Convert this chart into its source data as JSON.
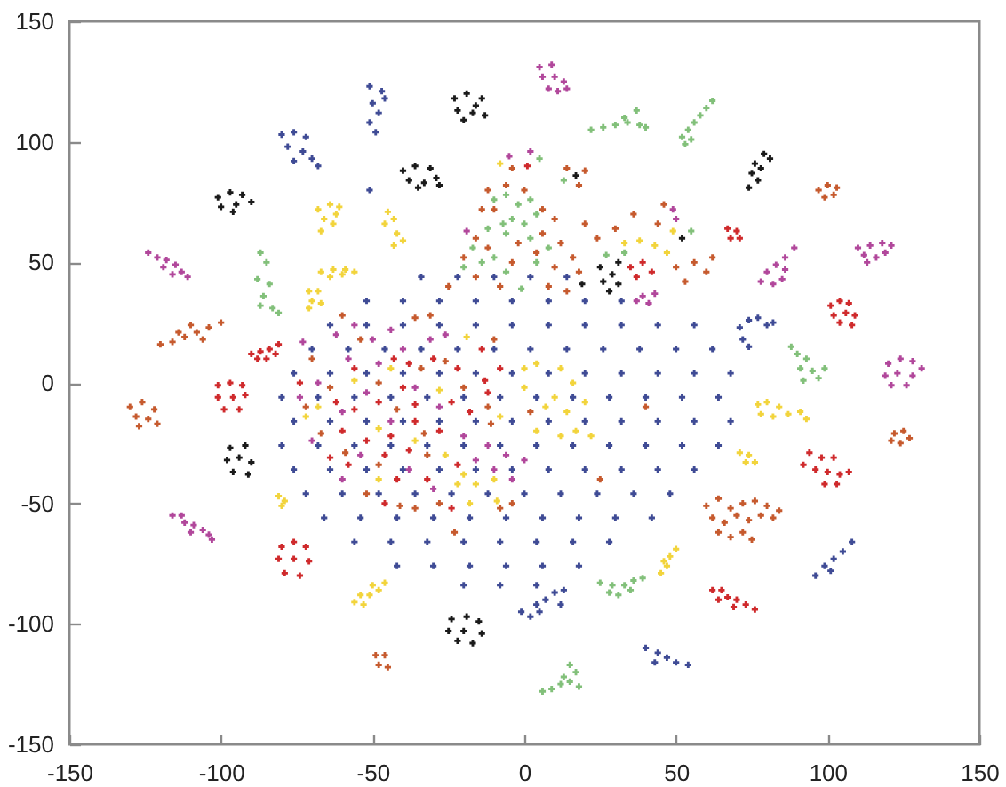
{
  "chart_data": {
    "type": "scatter",
    "marker": "cross",
    "xlim": [
      -150,
      150
    ],
    "ylim": [
      -150,
      150
    ],
    "xticks": [
      -150,
      -100,
      -50,
      0,
      50,
      100,
      150
    ],
    "yticks": [
      -150,
      -100,
      -50,
      0,
      50,
      100,
      150
    ],
    "series": [
      {
        "color": "#3f4b95",
        "x": [
          -51,
          -47,
          -50,
          -48,
          -51,
          -49,
          -46,
          -80,
          -76,
          -72,
          -78,
          -73,
          -70,
          -76,
          -68,
          -1,
          2,
          4,
          7,
          10,
          13,
          12,
          5,
          40,
          44,
          47,
          50,
          54,
          43,
          96,
          99,
          102,
          105,
          108,
          101,
          71,
          74,
          77,
          80,
          72,
          74,
          82,
          -51,
          -34,
          -22,
          -10,
          2,
          14,
          -52,
          -40,
          -28,
          -16,
          -4,
          8,
          20,
          32,
          -64,
          -52,
          -40,
          -28,
          -16,
          -4,
          8,
          20,
          32,
          44,
          56,
          -70,
          -58,
          -46,
          -34,
          -22,
          -10,
          2,
          14,
          26,
          38,
          50,
          62,
          -76,
          -64,
          -52,
          -40,
          -28,
          -16,
          -4,
          8,
          20,
          32,
          44,
          56,
          68,
          -80,
          -68,
          -56,
          -44,
          -32,
          -20,
          -8,
          4,
          16,
          28,
          40,
          52,
          64,
          -76,
          -64,
          -52,
          -40,
          -28,
          -16,
          -4,
          8,
          20,
          32,
          44,
          56,
          68,
          -80,
          -68,
          -56,
          -44,
          -32,
          -20,
          -8,
          4,
          16,
          28,
          40,
          52,
          64,
          -76,
          -64,
          -52,
          -40,
          -28,
          -16,
          -4,
          8,
          20,
          32,
          44,
          56,
          -72,
          -60,
          -48,
          -36,
          -24,
          -12,
          0,
          12,
          24,
          36,
          48,
          -66,
          -54,
          -42,
          -30,
          -18,
          -6,
          6,
          18,
          30,
          42,
          -56,
          -44,
          -32,
          -20,
          -8,
          4,
          16,
          28,
          -42,
          -30,
          -18,
          -6,
          6,
          18,
          -20,
          -8,
          4
        ],
        "values": [
          123,
          121,
          116,
          112,
          108,
          104,
          118,
          103,
          104,
          102,
          98,
          96,
          93,
          92,
          90,
          -95,
          -97,
          -92,
          -90,
          -87,
          -86,
          -92,
          -95,
          -110,
          -112,
          -114,
          -116,
          -117,
          -116,
          -80,
          -76,
          -73,
          -70,
          -66,
          -78,
          23,
          26,
          27,
          24,
          18,
          15,
          25,
          80,
          44,
          44,
          44,
          44,
          44,
          34,
          34,
          34,
          34,
          34,
          34,
          34,
          34,
          24,
          24,
          24,
          24,
          24,
          24,
          24,
          24,
          24,
          24,
          24,
          14,
          14,
          14,
          14,
          14,
          14,
          14,
          14,
          14,
          14,
          14,
          14,
          4,
          4,
          4,
          4,
          4,
          4,
          4,
          4,
          4,
          4,
          4,
          4,
          4,
          -6,
          -6,
          -6,
          -6,
          -6,
          -6,
          -6,
          -6,
          -6,
          -6,
          -6,
          -6,
          -6,
          -16,
          -16,
          -16,
          -16,
          -16,
          -16,
          -16,
          -16,
          -16,
          -16,
          -16,
          -16,
          -16,
          -26,
          -26,
          -26,
          -26,
          -26,
          -26,
          -26,
          -26,
          -26,
          -26,
          -26,
          -26,
          -26,
          -36,
          -36,
          -36,
          -36,
          -36,
          -36,
          -36,
          -36,
          -36,
          -36,
          -36,
          -36,
          -46,
          -46,
          -46,
          -46,
          -46,
          -46,
          -46,
          -46,
          -46,
          -46,
          -46,
          -56,
          -56,
          -56,
          -56,
          -56,
          -56,
          -56,
          -56,
          -56,
          -56,
          -66,
          -66,
          -66,
          -66,
          -66,
          -66,
          -66,
          -66,
          -76,
          -76,
          -76,
          -76,
          -76,
          -76,
          -84,
          -84,
          -84
        ]
      },
      {
        "color": "#1a1a1a",
        "x": [
          -23,
          -19,
          -14,
          -22,
          -17,
          -13,
          -20,
          -16,
          -40,
          -36,
          -31,
          -38,
          -33,
          -29,
          -35,
          -28,
          -101,
          -97,
          -93,
          -100,
          -95,
          -90,
          -96,
          -97,
          -92,
          -98,
          -94,
          -90,
          -96,
          -91,
          -24,
          -19,
          -15,
          -25,
          -20,
          -14,
          -22,
          -17,
          79,
          81,
          76,
          78,
          75,
          77,
          74,
          25,
          29,
          31,
          26,
          31,
          28,
          17,
          52,
          19
        ],
        "values": [
          118,
          120,
          118,
          113,
          112,
          111,
          109,
          115,
          88,
          90,
          89,
          84,
          83,
          85,
          81,
          82,
          77,
          79,
          78,
          73,
          74,
          75,
          71,
          -27,
          -26,
          -32,
          -31,
          -33,
          -37,
          -38,
          -98,
          -97,
          -99,
          -103,
          -103,
          -104,
          -107,
          -108,
          95,
          93,
          91,
          89,
          87,
          84,
          81,
          48,
          45,
          50,
          42,
          41,
          38,
          86,
          60,
          41
        ]
      },
      {
        "color": "#b1479b",
        "x": [
          5,
          9,
          6,
          10,
          13,
          8,
          14,
          11,
          -124,
          -121,
          -118,
          -119,
          -115,
          -113,
          -111,
          -116,
          -116,
          -113,
          -112,
          -109,
          -106,
          -104,
          -110,
          -103,
          120,
          124,
          128,
          119,
          123,
          128,
          121,
          126,
          131,
          89,
          86,
          83,
          80,
          86,
          78,
          82,
          85,
          110,
          114,
          118,
          121,
          112,
          116,
          119,
          113,
          -73,
          -62,
          -56,
          -50,
          -44,
          -40,
          -58,
          -48,
          -31,
          -26,
          -68,
          -52,
          -36,
          -28,
          -74,
          -60,
          -44,
          -20,
          -12,
          -6,
          0,
          -10,
          -16,
          -4,
          -70,
          -54,
          -38,
          -30,
          -60,
          39,
          41,
          37,
          43,
          -5,
          2,
          -19,
          49,
          50
        ],
        "values": [
          131,
          132,
          127,
          127,
          125,
          122,
          122,
          121,
          54,
          52,
          51,
          48,
          49,
          46,
          44,
          45,
          -55,
          -55,
          -58,
          -59,
          -61,
          -63,
          -62,
          -65,
          8,
          10,
          9,
          3,
          4,
          3,
          -1,
          -1,
          6,
          56,
          52,
          49,
          46,
          47,
          42,
          41,
          43,
          56,
          57,
          58,
          57,
          53,
          52,
          54,
          50,
          17,
          20,
          24,
          18,
          22,
          14,
          10,
          8,
          18,
          20,
          0,
          -4,
          -2,
          -10,
          -6,
          -12,
          -16,
          -22,
          -26,
          -30,
          -32,
          -36,
          -32,
          -40,
          -24,
          -30,
          -36,
          -44,
          -40,
          36,
          33,
          34,
          37,
          94,
          96,
          63,
          72,
          68
        ]
      },
      {
        "color": "#82c07a",
        "x": [
          22,
          26,
          30,
          34,
          38,
          33,
          37,
          40,
          52,
          54,
          56,
          55,
          58,
          60,
          62,
          53,
          -87,
          -85,
          -88,
          -84,
          -86,
          -87,
          -83,
          -81,
          25,
          29,
          33,
          36,
          39,
          31,
          28,
          35,
          6,
          9,
          12,
          15,
          17,
          15,
          18,
          13,
          88,
          90,
          93,
          91,
          95,
          97,
          99,
          92,
          -10,
          -6,
          -2,
          2,
          -7,
          -4,
          0,
          4,
          -12,
          -6,
          2,
          -17,
          -14,
          -20,
          -10,
          -6,
          4,
          8,
          -1,
          27,
          33,
          5,
          13,
          55
        ],
        "values": [
          105,
          106,
          107,
          108,
          107,
          110,
          113,
          106,
          102,
          105,
          108,
          101,
          111,
          114,
          117,
          99,
          54,
          50,
          43,
          41,
          36,
          32,
          31,
          29,
          -83,
          -84,
          -84,
          -82,
          -81,
          -88,
          -87,
          -86,
          -128,
          -127,
          -125,
          -124,
          -120,
          -117,
          -126,
          -122,
          15,
          12,
          10,
          6,
          5,
          2,
          6,
          1,
          76,
          78,
          74,
          76,
          66,
          68,
          66,
          70,
          64,
          62,
          60,
          56,
          50,
          48,
          52,
          46,
          50,
          56,
          39,
          53,
          54,
          93,
          84,
          63
        ]
      },
      {
        "color": "#c65a2e",
        "x": [
          -120,
          -116,
          -112,
          -108,
          -104,
          -100,
          -114,
          -106,
          -110,
          -130,
          -126,
          -122,
          -128,
          -124,
          -127,
          -121,
          -49,
          -46,
          -48,
          -45,
          60,
          64,
          68,
          72,
          76,
          80,
          84,
          62,
          66,
          70,
          74,
          78,
          64,
          72,
          82,
          68,
          75,
          122,
          125,
          127,
          124,
          121,
          97,
          100,
          103,
          99,
          102,
          -12,
          -6,
          0,
          -14,
          -10,
          6,
          10,
          -16,
          -2,
          6,
          12,
          16,
          -25,
          -16,
          -8,
          -4,
          8,
          14,
          18,
          -12,
          4,
          10,
          -20,
          20,
          24,
          30,
          36,
          44,
          46,
          50,
          56,
          60,
          62,
          53,
          14,
          20,
          18,
          -4,
          -70,
          -64,
          -54,
          -48,
          -42,
          -36,
          -34,
          -33,
          -26,
          -20,
          -11,
          -67,
          -59,
          -48,
          -41,
          -32,
          -28,
          -8,
          -72,
          -52,
          -36,
          -12,
          2,
          -60,
          -31,
          -4,
          -23,
          -10,
          25,
          40
        ],
        "values": [
          16,
          17,
          19,
          21,
          23,
          25,
          21,
          18,
          24,
          -10,
          -8,
          -11,
          -14,
          -15,
          -18,
          -17,
          -113,
          -113,
          -117,
          -118,
          -51,
          -48,
          -52,
          -50,
          -49,
          -51,
          -53,
          -56,
          -58,
          -55,
          -57,
          -55,
          -62,
          -62,
          -56,
          -64,
          -65,
          -21,
          -20,
          -23,
          -25,
          -24,
          80,
          82,
          81,
          77,
          78,
          80,
          82,
          80,
          72,
          72,
          72,
          68,
          60,
          58,
          62,
          58,
          52,
          40,
          44,
          40,
          50,
          40,
          38,
          46,
          56,
          54,
          48,
          52,
          66,
          60,
          64,
          70,
          66,
          74,
          48,
          50,
          46,
          52,
          42,
          89,
          88,
          82,
          89,
          10,
          -2,
          18,
          0,
          -11,
          27,
          6,
          -21,
          9,
          -2,
          -17,
          -21,
          -29,
          -34,
          -51,
          -30,
          -50,
          -52,
          -10,
          -46,
          -52,
          -10,
          -12,
          28,
          28,
          -50,
          -62,
          18,
          -40,
          -10
        ]
      },
      {
        "color": "#f2d43c",
        "x": [
          -68,
          -64,
          -61,
          -66,
          -63,
          -67,
          -62,
          -67,
          -63,
          -59,
          -56,
          -64,
          -60,
          -71,
          -68,
          -70,
          -67,
          -71,
          -45,
          -43,
          -46,
          -42,
          -40,
          -43,
          -81,
          -79,
          -80,
          -56,
          -53,
          -51,
          -48,
          -46,
          -50,
          -54,
          45,
          47,
          48,
          50,
          46,
          77,
          80,
          84,
          78,
          82,
          87,
          91,
          93,
          71,
          74,
          73,
          76,
          0,
          4,
          12,
          16,
          0,
          7,
          10,
          14,
          17,
          20,
          12,
          4,
          22,
          -20,
          -16,
          -9,
          -22,
          -18,
          -10,
          -68,
          -56,
          -48,
          -36,
          -28,
          -44,
          -26,
          -48,
          -8,
          -19,
          -72,
          33,
          38,
          43,
          47,
          -8,
          49
        ],
        "values": [
          72,
          74,
          73,
          68,
          66,
          63,
          70,
          46,
          47,
          47,
          46,
          44,
          45,
          38,
          38,
          34,
          33,
          31,
          71,
          68,
          66,
          62,
          59,
          57,
          -47,
          -49,
          -51,
          -91,
          -92,
          -88,
          -86,
          -83,
          -84,
          -88,
          -79,
          -76,
          -72,
          -69,
          -74,
          -9,
          -8,
          -10,
          -13,
          -14,
          -13,
          -12,
          -15,
          -29,
          -30,
          -33,
          -33,
          6,
          8,
          6,
          0,
          -2,
          -10,
          -6,
          -12,
          -20,
          -8,
          -22,
          -20,
          -22,
          -38,
          -42,
          -49,
          -42,
          -50,
          -40,
          -10,
          1,
          -19,
          -24,
          -3,
          6,
          -30,
          -40,
          -14,
          19,
          -14,
          58,
          59,
          57,
          54,
          91,
          63
        ]
      },
      {
        "color": "#cf2a2c",
        "x": [
          -90,
          -87,
          -84,
          -81,
          -88,
          -85,
          -82,
          -101,
          -97,
          -93,
          -101,
          -96,
          -92,
          -99,
          -94,
          -80,
          -76,
          -72,
          -81,
          -76,
          -71,
          -79,
          -74,
          62,
          65,
          67,
          70,
          73,
          76,
          64,
          69,
          94,
          98,
          102,
          92,
          96,
          100,
          104,
          107,
          99,
          103,
          101,
          104,
          107,
          102,
          106,
          109,
          104,
          108,
          67,
          70,
          68,
          71,
          -43,
          -38,
          -30,
          -22,
          -13,
          -12,
          -40,
          -36,
          -24,
          -18,
          -48,
          -56,
          -60,
          -44,
          -36,
          -28,
          -52,
          -64,
          -58,
          -46,
          -38,
          -32,
          -22,
          -42,
          -62,
          -74,
          -56,
          -14,
          -8,
          -24,
          -46,
          35,
          39,
          42,
          37,
          1
        ],
        "values": [
          12,
          13,
          14,
          16,
          10,
          10,
          12,
          -1,
          0,
          -1,
          -6,
          -6,
          -5,
          -11,
          -11,
          -68,
          -66,
          -68,
          -73,
          -73,
          -74,
          -79,
          -80,
          -86,
          -86,
          -89,
          -90,
          -92,
          -94,
          -90,
          -93,
          -29,
          -31,
          -31,
          -34,
          -36,
          -37,
          -38,
          -37,
          -42,
          -42,
          32,
          34,
          33,
          28,
          29,
          28,
          25,
          24,
          64,
          63,
          60,
          60,
          10,
          8,
          10,
          6,
          1,
          -4,
          -2,
          -9,
          -8,
          -12,
          -8,
          -11,
          -20,
          -22,
          -16,
          -20,
          -24,
          -31,
          -34,
          -30,
          -28,
          -40,
          -34,
          -40,
          -8,
          0,
          6,
          14,
          6,
          -52,
          -50,
          48,
          50,
          46,
          44,
          90
        ]
      }
    ]
  }
}
